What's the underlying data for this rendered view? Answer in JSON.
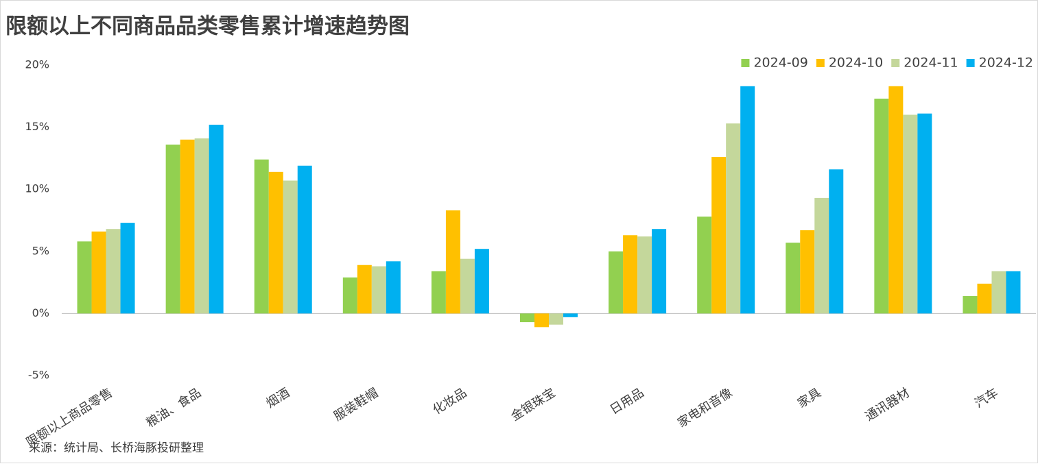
{
  "chart_data": {
    "type": "bar",
    "title": "限额以上不同商品品类零售累计增速趋势图",
    "source": "来源：统计局、长桥海豚投研整理",
    "categories": [
      "限额以上商品零售",
      "粮油、食品",
      "烟酒",
      "服装鞋帽",
      "化妆品",
      "金银珠宝",
      "日用品",
      "家电和音像",
      "家具",
      "通讯器材",
      "汽车"
    ],
    "series": [
      {
        "name": "2024-09",
        "color": "#92d050",
        "values": [
          5.8,
          13.6,
          12.4,
          2.9,
          3.4,
          -0.7,
          5.0,
          7.8,
          5.7,
          17.3,
          1.4
        ]
      },
      {
        "name": "2024-10",
        "color": "#ffc000",
        "values": [
          6.6,
          14.0,
          11.4,
          3.9,
          8.3,
          -1.1,
          6.3,
          12.6,
          6.7,
          18.3,
          2.4
        ]
      },
      {
        "name": "2024-11",
        "color": "#c4d79b",
        "values": [
          6.8,
          14.1,
          10.7,
          3.8,
          4.4,
          -0.9,
          6.2,
          15.3,
          9.3,
          16.0,
          3.4
        ]
      },
      {
        "name": "2024-12",
        "color": "#00b0f0",
        "values": [
          7.3,
          15.2,
          11.9,
          4.2,
          5.2,
          -0.3,
          6.8,
          18.3,
          11.6,
          16.1,
          3.4
        ]
      }
    ],
    "ylim": [
      -5,
      20
    ],
    "yticks": [
      {
        "value": -5,
        "label": "-5%"
      },
      {
        "value": 0,
        "label": "0%"
      },
      {
        "value": 5,
        "label": "5%"
      },
      {
        "value": 10,
        "label": "10%"
      },
      {
        "value": 15,
        "label": "15%"
      },
      {
        "value": 20,
        "label": "20%"
      }
    ],
    "grid": false,
    "legend": "top-right"
  }
}
